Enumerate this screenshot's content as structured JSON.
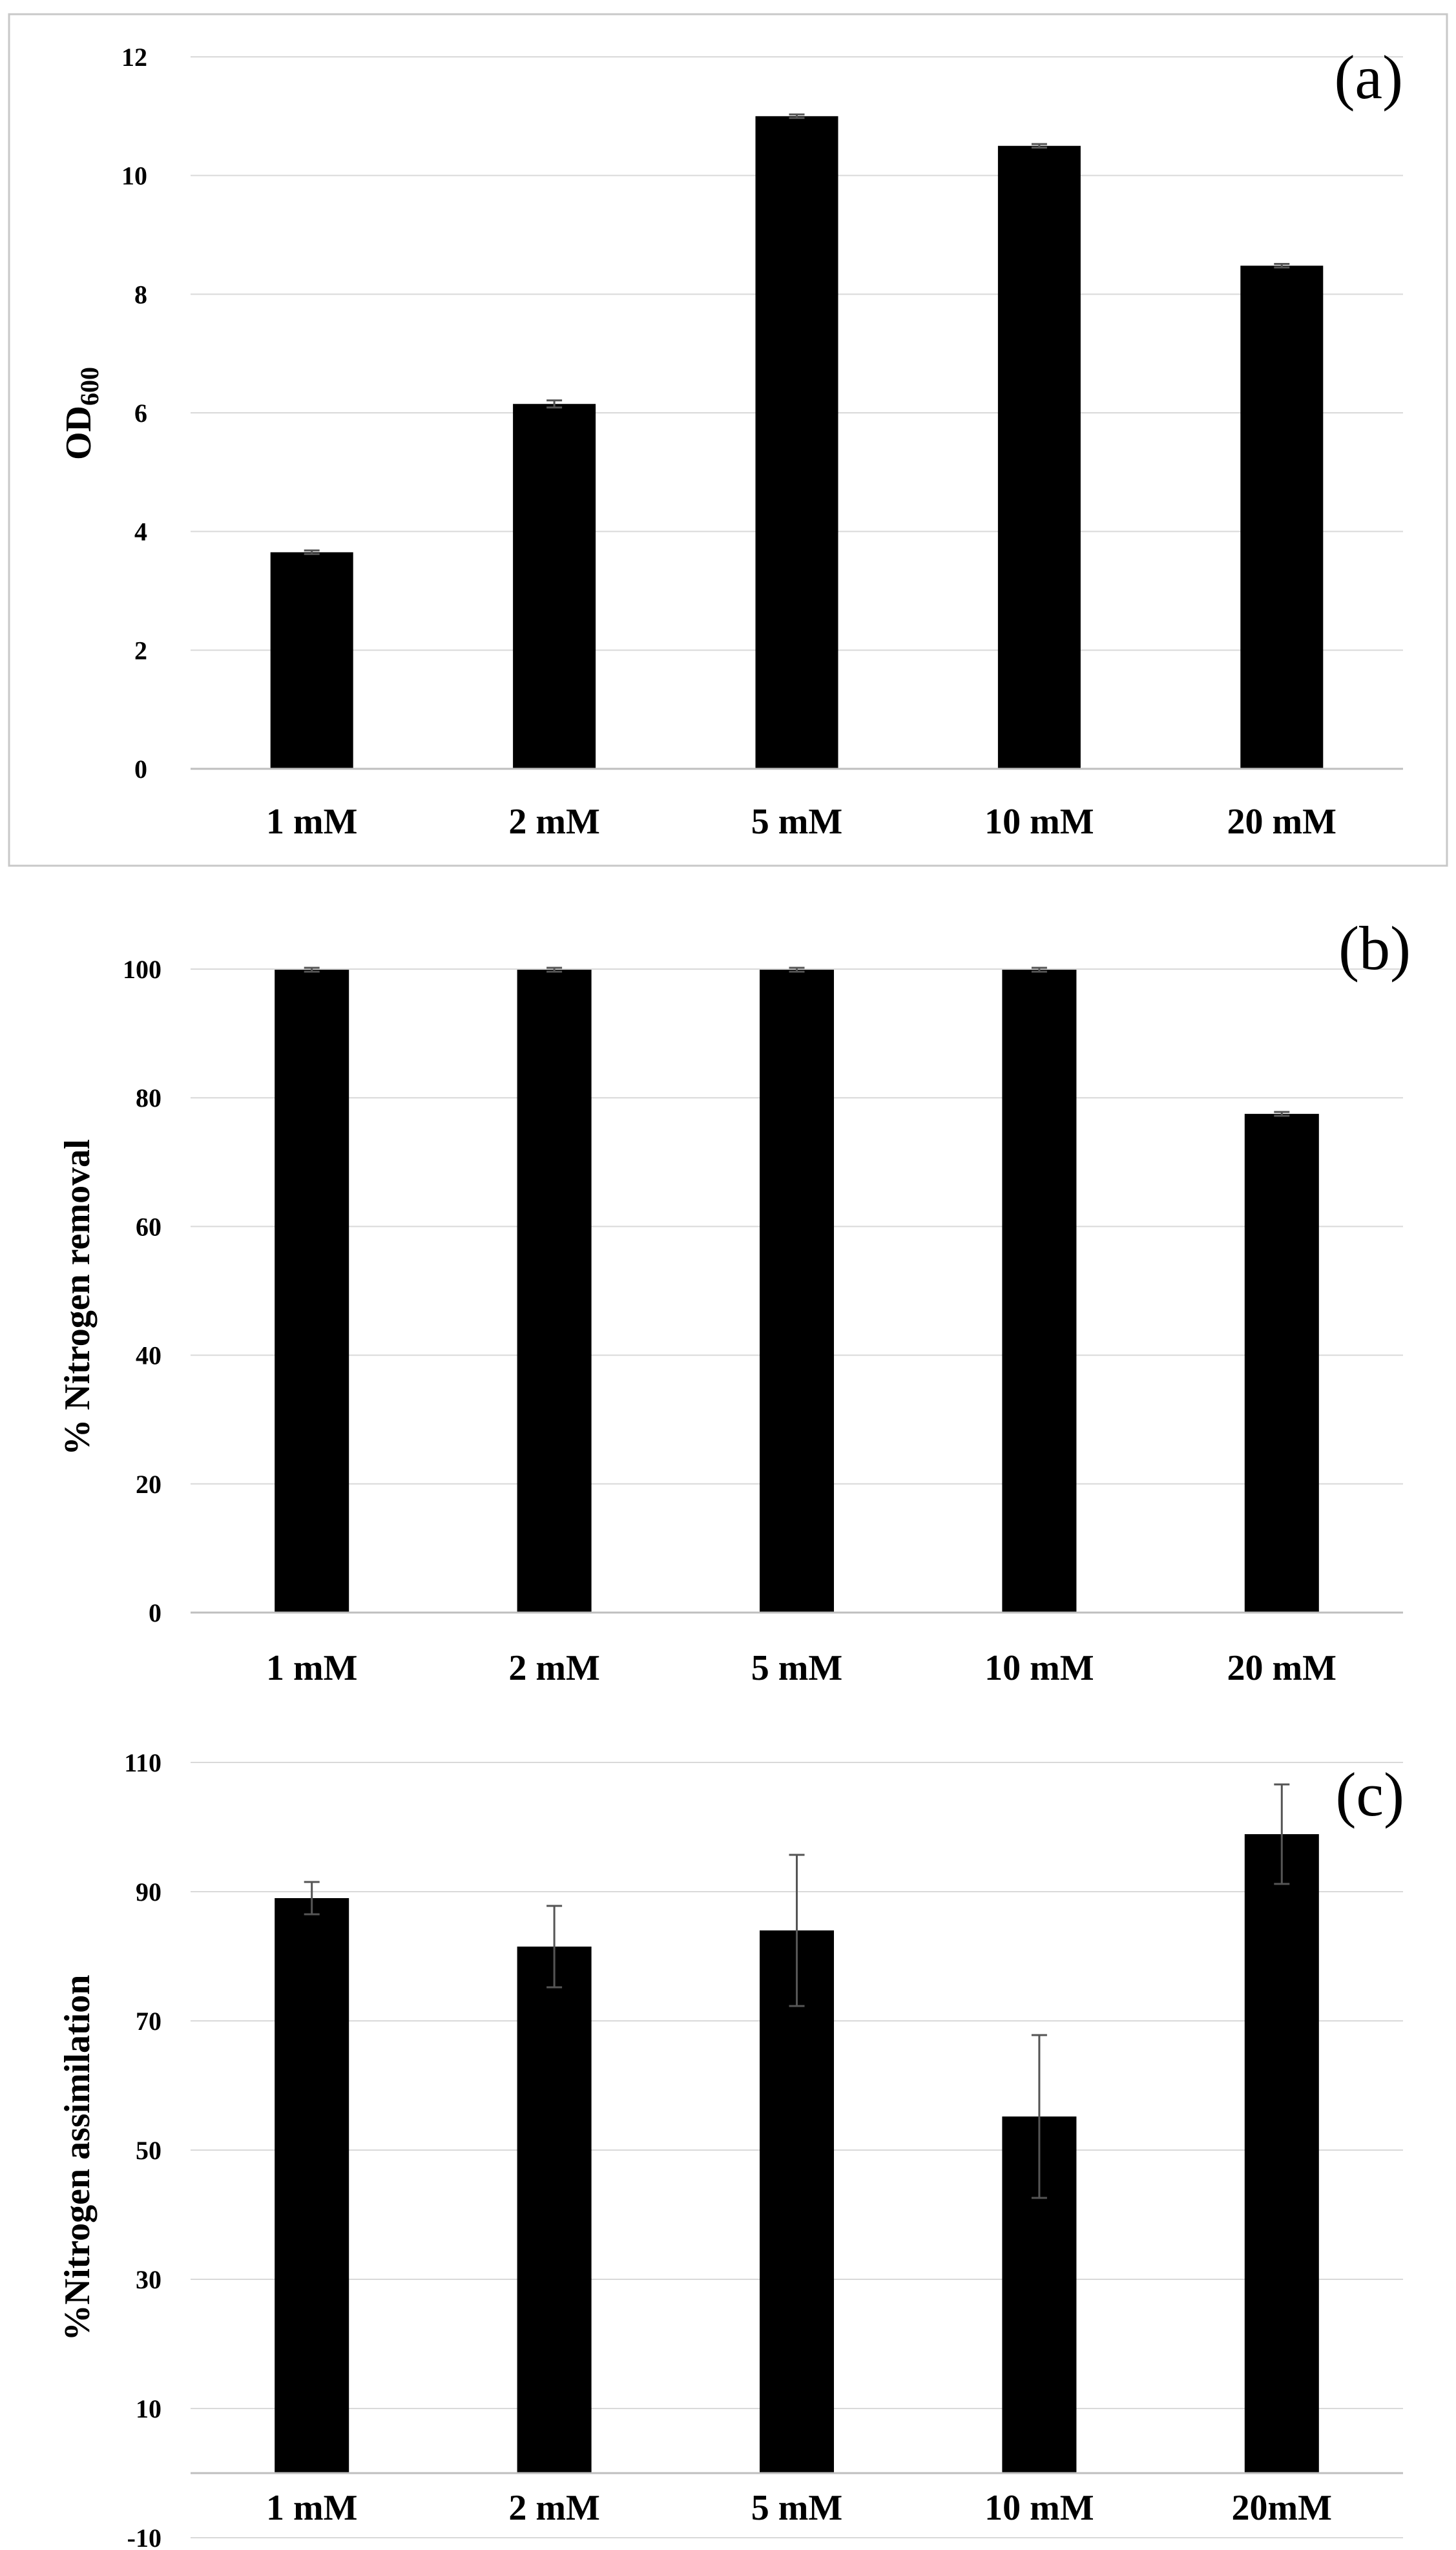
{
  "figure": {
    "background": "#ffffff",
    "bar_color": "#000000",
    "grid_color": "#d9d9d9",
    "frame_color": "#c8c8c8"
  },
  "chart_data": [
    {
      "type": "bar",
      "panel_label": "(a)",
      "title": "",
      "xlabel": "",
      "ylabel_main": "OD",
      "ylabel_sub": "600",
      "categories": [
        "1 mM",
        "2 mM",
        "5 mM",
        "10 mM",
        "20 mM"
      ],
      "values": [
        3.65,
        6.15,
        11.0,
        10.5,
        8.48
      ],
      "errors": [
        0.03,
        0.06,
        0.03,
        0.03,
        0.03
      ],
      "ylim": [
        0,
        12
      ],
      "yticks": [
        0,
        2,
        4,
        6,
        8,
        10,
        12
      ],
      "grid": true,
      "legend": "none"
    },
    {
      "type": "bar",
      "panel_label": "(b)",
      "title": "",
      "xlabel": "",
      "ylabel": "% Nitrogen removal",
      "categories": [
        "1 mM",
        "2 mM",
        "5 mM",
        "10 mM",
        "20 mM"
      ],
      "values": [
        99.9,
        99.9,
        99.9,
        99.9,
        77.5
      ],
      "errors": [
        0.3,
        0.3,
        0.3,
        0.3,
        0.3
      ],
      "ylim": [
        0,
        100
      ],
      "yticks": [
        0,
        20,
        40,
        60,
        80,
        100
      ],
      "grid": true,
      "legend": "none"
    },
    {
      "type": "bar",
      "panel_label": "(c)",
      "title": "",
      "xlabel": "",
      "ylabel": "%Nitrogen assimilation",
      "categories": [
        "1 mM",
        "2 mM",
        "5 mM",
        "10 mM",
        "20mM"
      ],
      "values": [
        89.0,
        81.5,
        84.0,
        55.2,
        98.9
      ],
      "errors": [
        2.5,
        6.3,
        11.7,
        12.6,
        7.7
      ],
      "ylim": [
        -10,
        110
      ],
      "yticks": [
        -10,
        10,
        30,
        50,
        70,
        90,
        110
      ],
      "baseline": 0,
      "grid": true,
      "legend": "none"
    }
  ]
}
